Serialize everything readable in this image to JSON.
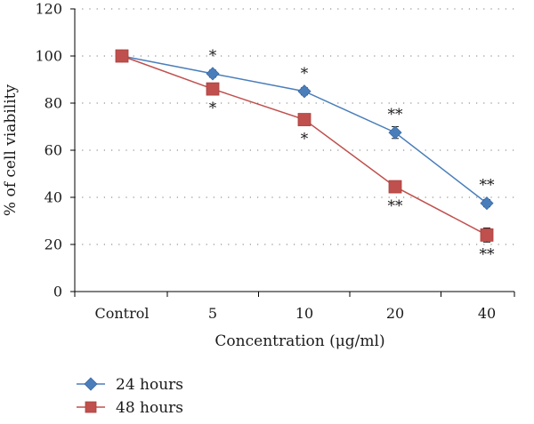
{
  "chart_data": {
    "type": "line",
    "categories": [
      "Control",
      "5",
      "10",
      "20",
      "40"
    ],
    "xlabel": "Concentration (μg/ml)",
    "ylabel": "% of cell viability",
    "ylim": [
      0,
      120
    ],
    "yticks": [
      0,
      20,
      40,
      60,
      80,
      100,
      120
    ],
    "grid": true,
    "legend_position": "bottom-left",
    "series": [
      {
        "name": "24 hours",
        "values": [
          100,
          92.5,
          85,
          67.5,
          37.5
        ],
        "errors": [
          0,
          1.5,
          1.5,
          2.5,
          1.5
        ],
        "color": "#4a7ebb",
        "marker": "diamond",
        "annotations": [
          "",
          "*",
          "*",
          "**",
          "**"
        ]
      },
      {
        "name": "48 hours",
        "values": [
          100,
          86,
          73,
          44.5,
          24
        ],
        "errors": [
          0,
          1.5,
          1.5,
          1.5,
          3
        ],
        "color": "#c0504d",
        "marker": "square",
        "annotations": [
          "",
          "*",
          "*",
          "**",
          "**"
        ]
      }
    ]
  }
}
